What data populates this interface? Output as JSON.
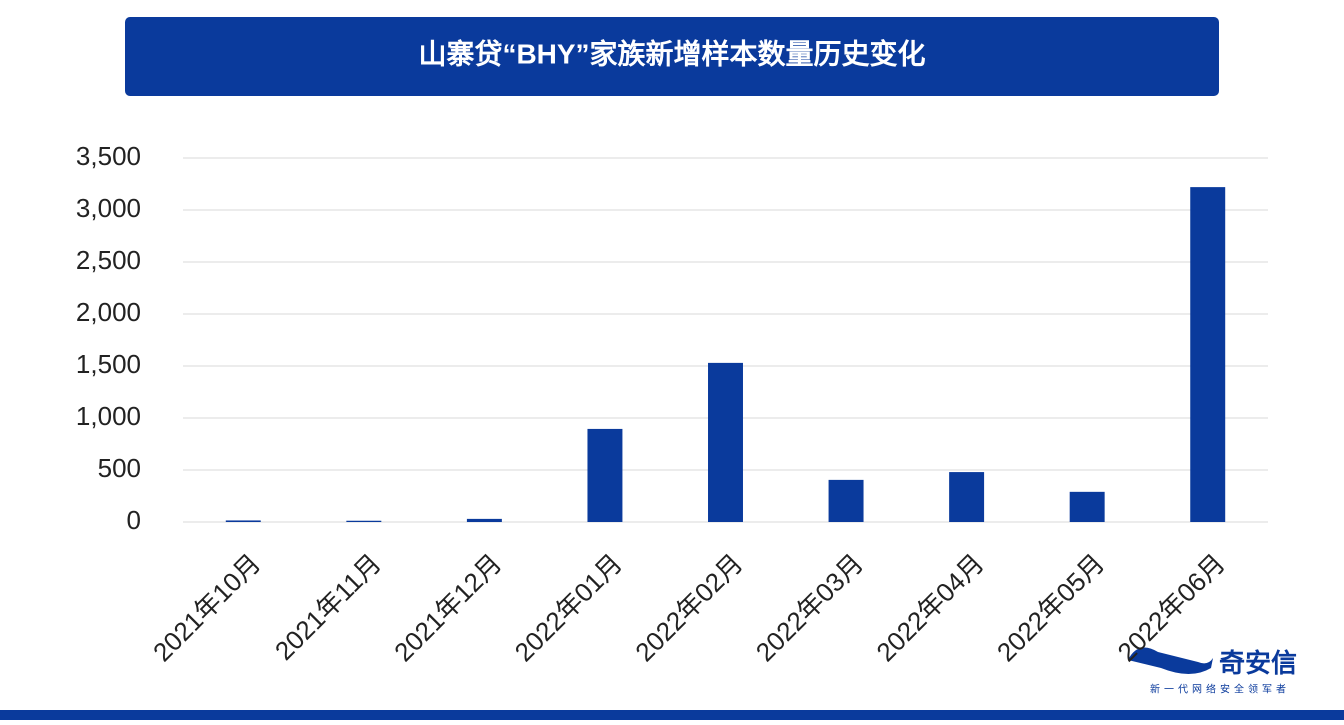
{
  "chart_data": {
    "type": "bar",
    "title": "山寨贷“BHY”家族新增样本数量历史变化",
    "categories": [
      "2021年10月",
      "2021年11月",
      "2021年12月",
      "2022年01月",
      "2022年02月",
      "2022年03月",
      "2022年04月",
      "2022年05月",
      "2022年06月"
    ],
    "values": [
      15,
      12,
      30,
      895,
      1530,
      405,
      480,
      290,
      3220
    ],
    "color": "#0a3a9c",
    "ylim": [
      0,
      3500
    ],
    "yticks": [
      0,
      500,
      {
        "value": 1000,
        "label": "1,000"
      },
      {
        "value": 1500,
        "label": "1,500"
      },
      {
        "value": 2000,
        "label": "2,000"
      },
      {
        "value": 2500,
        "label": "2,500"
      },
      {
        "value": 3000,
        "label": "3,000"
      },
      {
        "value": 3500,
        "label": "3,500"
      }
    ],
    "grid": true
  },
  "logo": {
    "name": "奇安信",
    "slogan": "新一代网络安全领军者"
  }
}
